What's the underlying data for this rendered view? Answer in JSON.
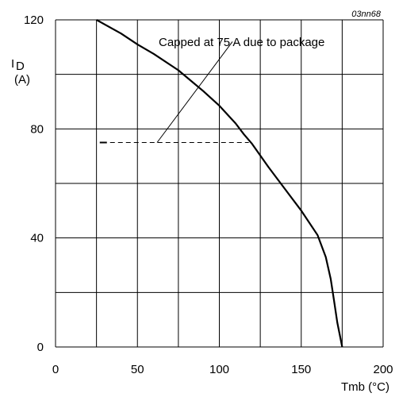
{
  "chart_data": {
    "type": "line",
    "reference_code": "03nn68",
    "ylabel_main": "I",
    "ylabel_sub": "D",
    "ylabel_unit": "(A)",
    "xlabel": "Tmb (°C)",
    "xlim": [
      0,
      200
    ],
    "ylim": [
      0,
      120
    ],
    "x_ticks": [
      0,
      50,
      100,
      150,
      200
    ],
    "y_ticks": [
      0,
      40,
      80,
      120
    ],
    "grid": true,
    "series": [
      {
        "x": [
          25,
          40,
          50,
          60,
          75,
          90,
          100,
          110,
          115,
          120,
          130,
          140,
          150,
          160,
          165,
          168,
          170,
          172,
          175
        ],
        "y": [
          120,
          115,
          111,
          107.5,
          101.5,
          94,
          88.5,
          82,
          78,
          74.5,
          66,
          58,
          50,
          41,
          33,
          25,
          17,
          9,
          0
        ]
      }
    ],
    "cap_line": {
      "x": [
        27,
        118
      ],
      "y": [
        75,
        75
      ]
    },
    "annotation": {
      "text": "Capped at 75 A due to package",
      "target": {
        "x": 62,
        "y": 75
      },
      "anchor": {
        "x": 108,
        "y": 112
      }
    }
  }
}
